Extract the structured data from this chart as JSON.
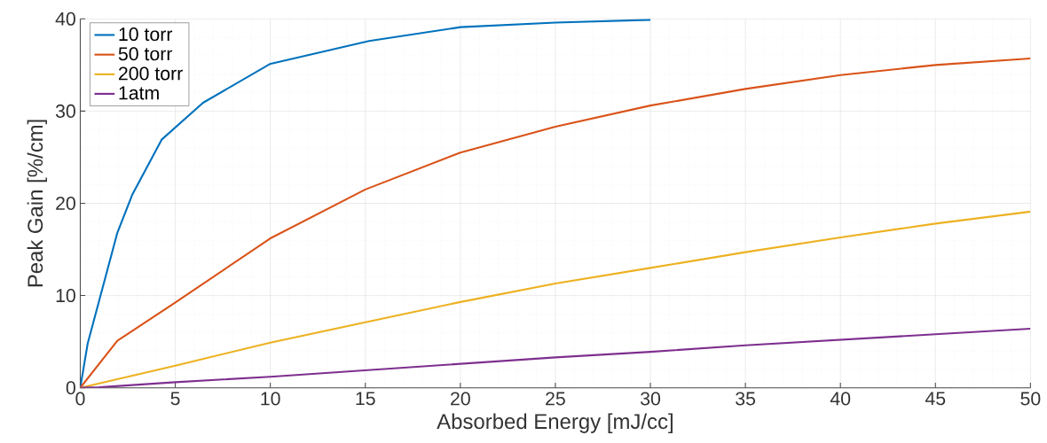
{
  "chart_data": {
    "type": "line",
    "xlabel": "Absorbed Energy [mJ/cc]",
    "ylabel": "Peak Gain [%/cm]",
    "xlim": [
      0,
      50
    ],
    "ylim": [
      0,
      40
    ],
    "xticks": [
      0,
      5,
      10,
      15,
      20,
      25,
      30,
      35,
      40,
      45,
      50
    ],
    "yticks": [
      0,
      10,
      20,
      30,
      40
    ],
    "grid": true,
    "legend": "top left",
    "line_style": "solid",
    "marker": "none",
    "series": [
      {
        "name": "10 torr",
        "color": "#0072bd",
        "x": [
          0,
          0.39,
          1.17,
          1.95,
          2.73,
          4.28,
          6.46,
          9.97,
          15.2,
          20,
          25,
          30
        ],
        "values": [
          0,
          4.8,
          10.8,
          16.8,
          20.9,
          26.9,
          30.9,
          35.1,
          37.6,
          39.1,
          39.6,
          39.9
        ]
      },
      {
        "name": "50 torr",
        "color": "#d95319",
        "x": [
          0,
          1.95,
          4.9,
          10,
          15,
          20,
          25,
          30,
          35,
          40,
          45,
          50
        ],
        "values": [
          0,
          5.1,
          9.1,
          16.2,
          21.5,
          25.5,
          28.3,
          30.6,
          32.4,
          33.9,
          35.0,
          35.7
        ]
      },
      {
        "name": "200 torr",
        "color": "#edb120",
        "x": [
          0,
          5,
          10,
          15,
          20,
          25,
          30,
          35,
          40,
          45,
          50
        ],
        "values": [
          0,
          2.4,
          4.9,
          7.1,
          9.3,
          11.3,
          13.0,
          14.7,
          16.3,
          17.8,
          19.1
        ]
      },
      {
        "name": "1atm",
        "color": "#7e2f8e",
        "x": [
          0,
          1,
          5,
          10,
          15,
          20,
          25,
          30,
          35,
          40,
          45,
          50
        ],
        "values": [
          0,
          0.05,
          0.6,
          1.2,
          1.9,
          2.6,
          3.3,
          3.9,
          4.6,
          5.2,
          5.8,
          6.4
        ]
      }
    ]
  }
}
